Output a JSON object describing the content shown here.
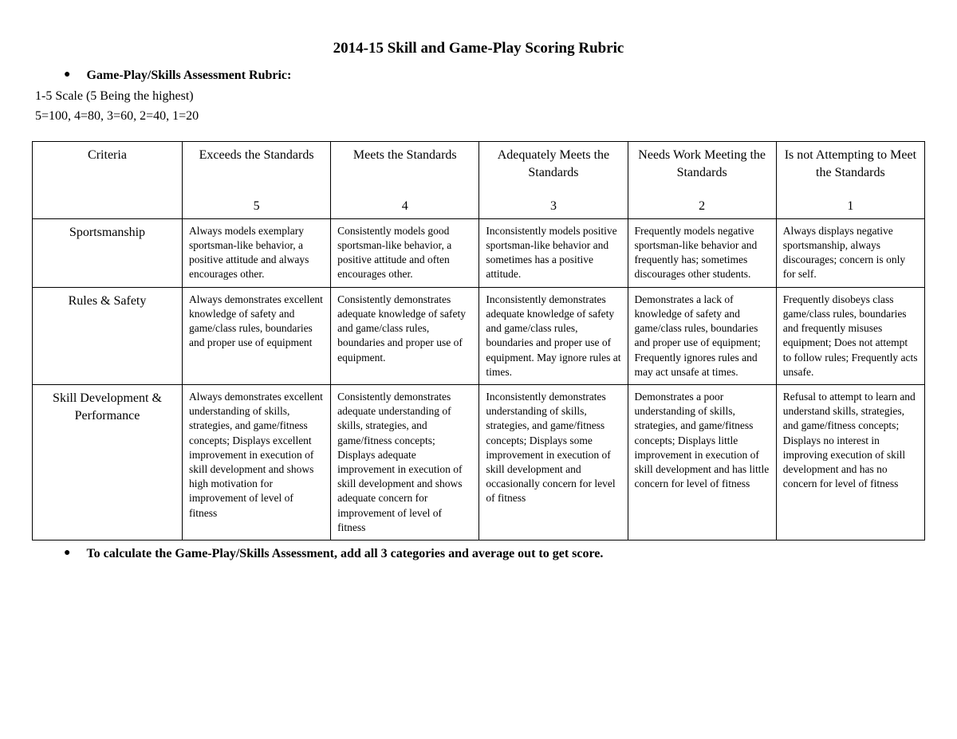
{
  "title": "2014-15 Skill and Game-Play Scoring Rubric",
  "header_bullet": "Game-Play/Skills Assessment Rubric:",
  "scale_line1": "1-5 Scale (5 Being the highest)",
  "scale_line2": "5=100, 4=80, 3=60, 2=40, 1=20",
  "columns": {
    "criteria": "Criteria",
    "levels": [
      {
        "label": "Exceeds the Standards",
        "score": "5"
      },
      {
        "label": "Meets the Standards",
        "score": "4"
      },
      {
        "label": "Adequately Meets the Standards",
        "score": "3"
      },
      {
        "label": "Needs Work Meeting the Standards",
        "score": "2"
      },
      {
        "label": "Is not Attempting to Meet the Standards",
        "score": "1"
      }
    ]
  },
  "rows": [
    {
      "criteria": "Sportsmanship",
      "cells": [
        "Always models exemplary sportsman-like behavior, a positive attitude and always encourages other.",
        "Consistently models good sportsman-like behavior, a positive attitude and often encourages other.",
        "Inconsistently models positive sportsman-like behavior and sometimes has a positive attitude.",
        "Frequently models negative sportsman-like behavior and frequently has; sometimes discourages other students.",
        "Always displays negative sportsmanship, always discourages; concern is only for self."
      ]
    },
    {
      "criteria": "Rules & Safety",
      "cells": [
        "Always demonstrates excellent knowledge of safety and game/class rules, boundaries and proper use of equipment",
        "Consistently demonstrates adequate knowledge of safety and game/class rules, boundaries and proper use of equipment.",
        "Inconsistently demonstrates adequate knowledge of safety and game/class rules, boundaries and proper use of equipment. May ignore rules at times.",
        "Demonstrates a lack of knowledge of safety and game/class rules, boundaries and proper use of equipment; Frequently ignores rules and may act unsafe at times.",
        "Frequently disobeys class game/class rules, boundaries and frequently misuses equipment; Does not attempt to follow rules; Frequently acts unsafe."
      ]
    },
    {
      "criteria": "Skill Development & Performance",
      "cells": [
        "Always demonstrates excellent understanding of skills, strategies, and game/fitness concepts; Displays excellent improvement in execution of skill development and shows high motivation for improvement of level of fitness",
        "Consistently demonstrates adequate understanding of skills, strategies, and game/fitness concepts; Displays adequate improvement in execution of skill development and shows adequate concern for improvement of level of fitness",
        "Inconsistently demonstrates understanding of skills, strategies, and game/fitness concepts; Displays some improvement in execution of skill development and occasionally concern for level of fitness",
        "Demonstrates a poor understanding of skills, strategies, and game/fitness concepts; Displays little improvement in execution of skill development and has little concern for level of fitness",
        "Refusal to attempt to learn and understand skills, strategies, and game/fitness concepts; Displays no interest in improving execution of skill development and has no concern for level of fitness"
      ]
    }
  ],
  "footer_bullet": "To calculate the Game-Play/Skills Assessment, add all 3 categories and average out to get score."
}
